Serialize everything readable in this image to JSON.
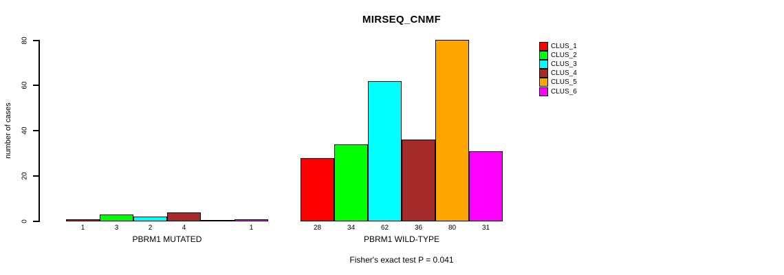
{
  "chart_data": {
    "type": "bar",
    "title": "MIRSEQ_CNMF",
    "ylabel": "number of cases",
    "ylim": [
      0,
      80
    ],
    "yticks": [
      0,
      20,
      40,
      60,
      80
    ],
    "grid": false,
    "legend_position": "right",
    "series_labels": [
      "CLUS_1",
      "CLUS_2",
      "CLUS_3",
      "CLUS_4",
      "CLUS_5",
      "CLUS_6"
    ],
    "colors": [
      "#FF0000",
      "#00FF00",
      "#00FFFF",
      "#A52A2A",
      "#FFA500",
      "#FF00FF"
    ],
    "bar_border_color": "#000000",
    "groups": [
      {
        "label": "PBRM1 MUTATED",
        "values": [
          1,
          3,
          2,
          4,
          0,
          1
        ]
      },
      {
        "label": "PBRM1 WILD-TYPE",
        "values": [
          28,
          34,
          62,
          36,
          80,
          31
        ]
      }
    ],
    "annotation": "Fisher's exact test P = 0.041"
  },
  "legend": {
    "items": [
      {
        "label": "CLUS_1",
        "color": "#FF0000"
      },
      {
        "label": "CLUS_2",
        "color": "#00FF00"
      },
      {
        "label": "CLUS_3",
        "color": "#00FFFF"
      },
      {
        "label": "CLUS_4",
        "color": "#A52A2A"
      },
      {
        "label": "CLUS_5",
        "color": "#FFA500"
      },
      {
        "label": "CLUS_6",
        "color": "#FF00FF"
      }
    ]
  }
}
